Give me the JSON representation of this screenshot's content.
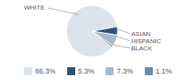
{
  "chart_data": {
    "type": "pie",
    "categories": [
      "WHITE",
      "ASIAN",
      "HISPANIC",
      "BLACK"
    ],
    "values": [
      86.3,
      5.3,
      7.3,
      1.1
    ],
    "value_labels": [
      "86.3%",
      "5.3%",
      "7.3%",
      "1.1%"
    ],
    "colors": [
      "#dce3ea",
      "#2e5275",
      "#a9b9cc",
      "#6d8cab"
    ]
  }
}
